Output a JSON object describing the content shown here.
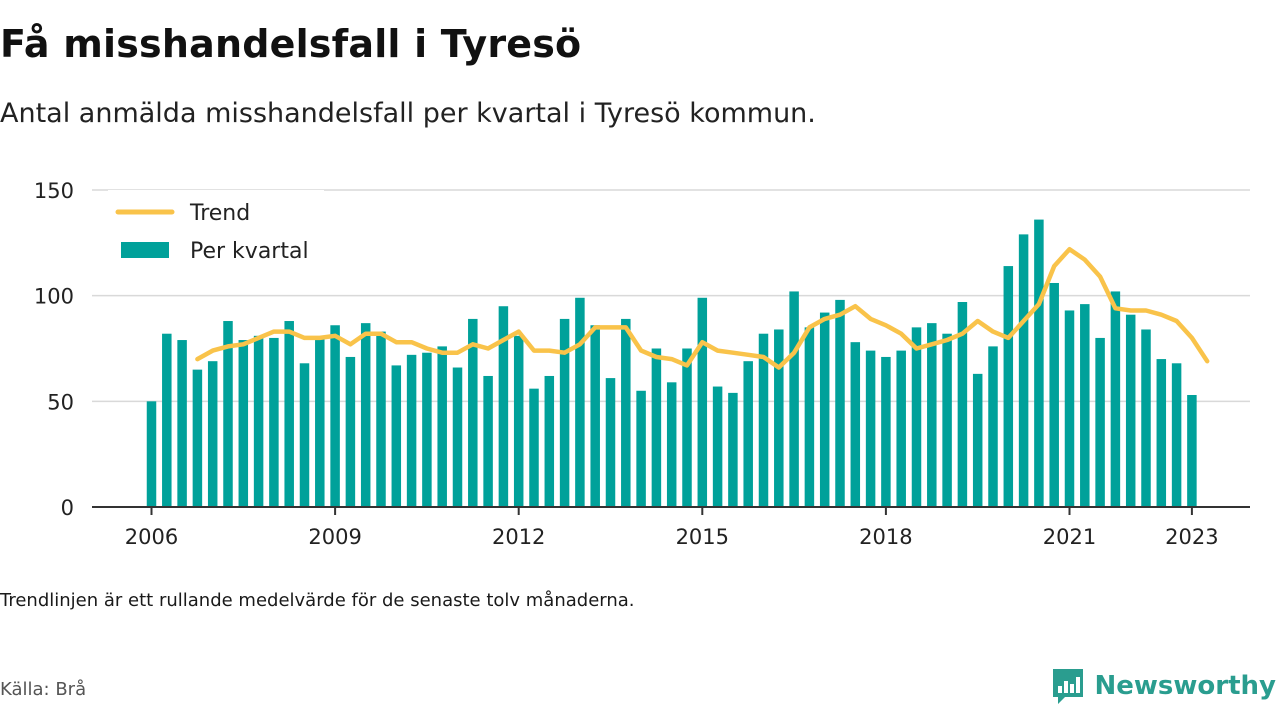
{
  "title": "Få misshandelsfall i Tyresö",
  "subtitle": "Antal anmälda misshandelsfall per kvartal i Tyresö kommun.",
  "footnote": "Trendlinjen är ett rullande medelvärde för de senaste tolv månaderna.",
  "source": "Källa: Brå",
  "brand": {
    "name": "Newsworthy",
    "icon": "newsworthy-logo-icon",
    "color": "#2a9d8f"
  },
  "colors": {
    "bars": "#00a19a",
    "trend": "#f9c34a",
    "grid": "#d9d9d9",
    "axis": "#333333"
  },
  "chart_data": {
    "type": "bar",
    "x_start": "2006 Q1",
    "ylim": [
      0,
      150
    ],
    "y_ticks": [
      0,
      50,
      100,
      150
    ],
    "x_tick_labels": [
      "2006",
      "2009",
      "2012",
      "2015",
      "2018",
      "2021",
      "2023"
    ],
    "x_tick_years": [
      2006,
      2009,
      2012,
      2015,
      2018,
      2021,
      2023
    ],
    "grid": true,
    "legend_position": "top-left",
    "series": [
      {
        "name": "Per kvartal",
        "type": "bar",
        "values": [
          50,
          82,
          79,
          65,
          69,
          88,
          79,
          81,
          80,
          88,
          68,
          80,
          86,
          71,
          87,
          83,
          67,
          72,
          73,
          76,
          66,
          89,
          62,
          95,
          81,
          56,
          62,
          89,
          99,
          86,
          61,
          89,
          55,
          75,
          59,
          75,
          99,
          57,
          54,
          69,
          82,
          84,
          102,
          85,
          92,
          98,
          78,
          74,
          71,
          74,
          85,
          87,
          82,
          97,
          63,
          76,
          114,
          129,
          136,
          106,
          93,
          96,
          80,
          102,
          91,
          84,
          70,
          68,
          53
        ]
      },
      {
        "name": "Trend",
        "type": "line",
        "start_index": 3,
        "values": [
          70,
          74,
          76,
          77,
          80,
          83,
          83,
          80,
          80,
          81,
          77,
          82,
          82,
          78,
          78,
          75,
          73,
          73,
          77,
          75,
          79,
          83,
          74,
          74,
          73,
          77,
          85,
          85,
          85,
          74,
          71,
          70,
          67,
          78,
          74,
          73,
          72,
          71,
          66,
          73,
          85,
          89,
          91,
          95,
          89,
          86,
          82,
          75,
          77,
          79,
          82,
          88,
          83,
          80,
          88,
          96,
          114,
          122,
          117,
          109,
          94,
          93,
          93,
          91,
          88,
          80,
          69
        ]
      }
    ]
  }
}
